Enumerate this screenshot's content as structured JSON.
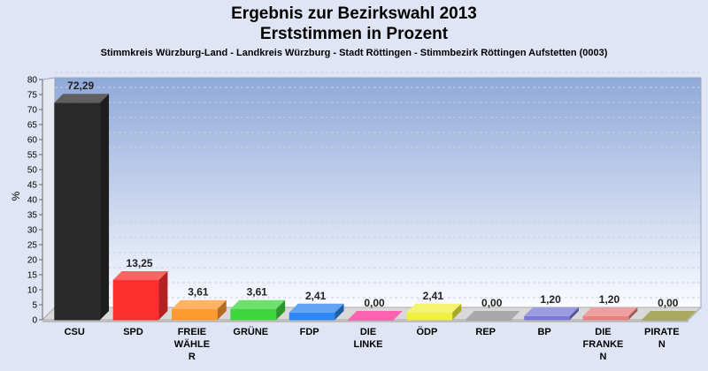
{
  "chart_data": {
    "type": "bar",
    "title_lines": [
      "Ergebnis zur Bezirkswahl 2013",
      "Erststimmen in Prozent"
    ],
    "subtitle": "Stimmkreis Würzburg-Land - Landkreis Würzburg - Stadt Röttingen - Stimmbezirk Röttingen Aufstetten (0003)",
    "ylabel": "%",
    "xlabel": "",
    "ylim": [
      0,
      80
    ],
    "ytick_step": 5,
    "grid": true,
    "categories": [
      [
        "CSU"
      ],
      [
        "SPD"
      ],
      [
        "FREIE",
        "WÄHLE",
        "R"
      ],
      [
        "GRÜNE"
      ],
      [
        "FDP"
      ],
      [
        "DIE",
        "LINKE"
      ],
      [
        "ÖDP"
      ],
      [
        "REP"
      ],
      [
        "BP"
      ],
      [
        "DIE",
        "FRANKE",
        "N"
      ],
      [
        "PIRATE",
        "N"
      ]
    ],
    "values": [
      72.29,
      13.25,
      3.61,
      3.61,
      2.41,
      0.0,
      2.41,
      0.0,
      1.2,
      1.2,
      0.0
    ],
    "value_labels": [
      "72,29",
      "13,25",
      "3,61",
      "3,61",
      "2,41",
      "0,00",
      "2,41",
      "0,00",
      "1,20",
      "1,20",
      "0,00"
    ],
    "colors": [
      "#2a2a2a",
      "#ff2f2f",
      "#ff9a2f",
      "#3ed63e",
      "#2e86f0",
      "#ff2e96",
      "#f0f040",
      "#8c8c8c",
      "#7a7ad6",
      "#e88080",
      "#8c8c30"
    ]
  }
}
